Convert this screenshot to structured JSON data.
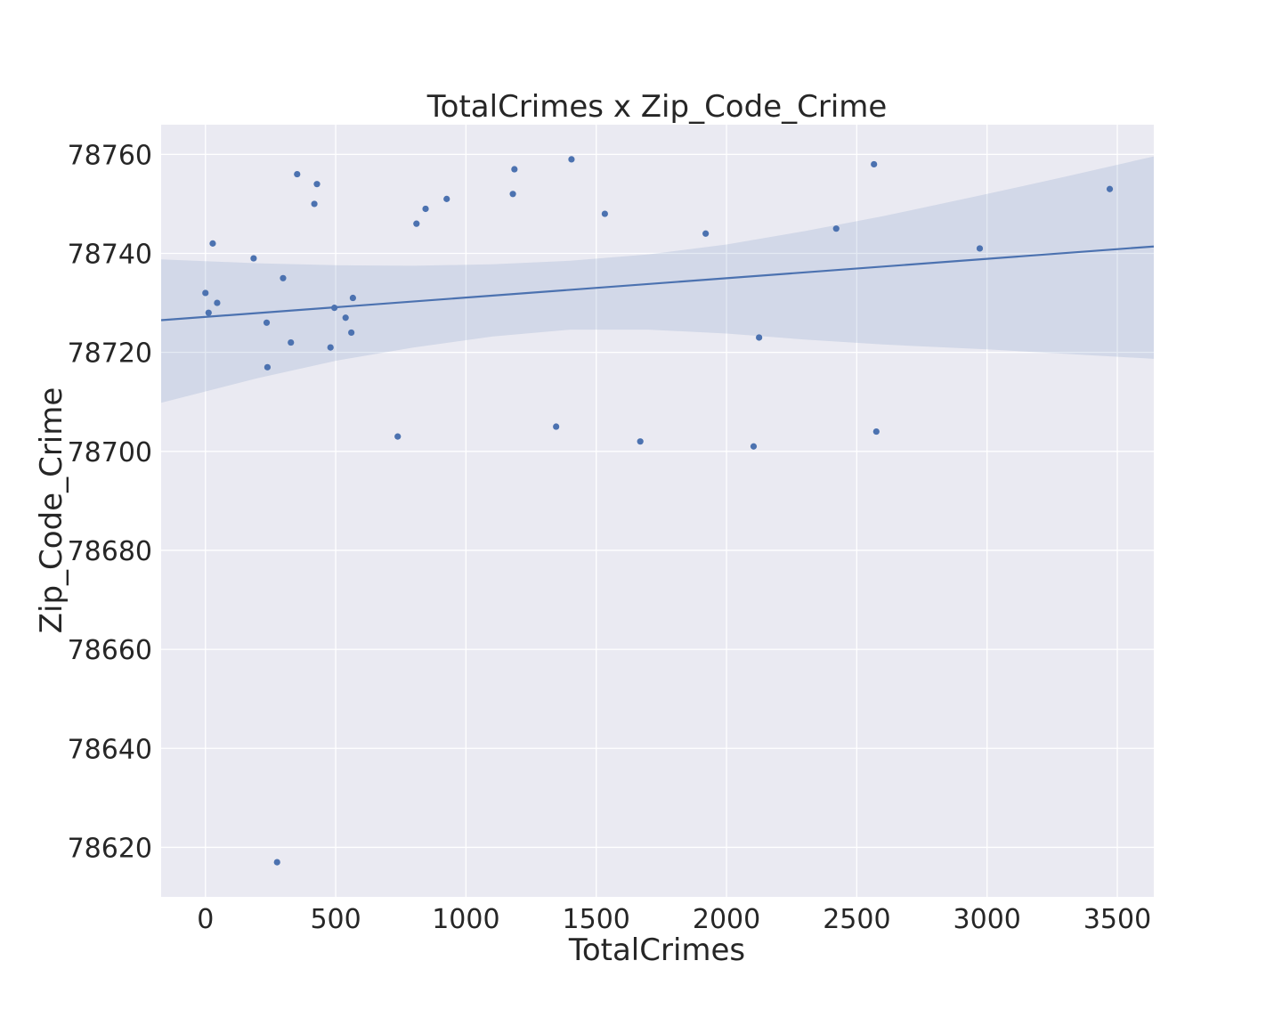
{
  "chart_data": {
    "type": "scatter",
    "title": "TotalCrimes x Zip_Code_Crime",
    "xlabel": "TotalCrimes",
    "ylabel": "Zip_Code_Crime",
    "xlim": [
      -170,
      3640
    ],
    "ylim": [
      78610,
      78766
    ],
    "xticks": [
      0,
      500,
      1000,
      1500,
      2000,
      2500,
      3000,
      3500
    ],
    "yticks": [
      78620,
      78640,
      78660,
      78680,
      78700,
      78720,
      78740,
      78760
    ],
    "grid": true,
    "style": "seaborn-darkgrid regplot",
    "colors": {
      "background": "#eaeaf2",
      "grid": "#ffffff",
      "point": "#4c72b0",
      "band": "#4c72b0"
    },
    "points": [
      {
        "x": 0,
        "y": 78732
      },
      {
        "x": 12,
        "y": 78728
      },
      {
        "x": 28,
        "y": 78742
      },
      {
        "x": 45,
        "y": 78730
      },
      {
        "x": 185,
        "y": 78739
      },
      {
        "x": 235,
        "y": 78726
      },
      {
        "x": 238,
        "y": 78717
      },
      {
        "x": 275,
        "y": 78617
      },
      {
        "x": 298,
        "y": 78735
      },
      {
        "x": 328,
        "y": 78722
      },
      {
        "x": 352,
        "y": 78756
      },
      {
        "x": 418,
        "y": 78750
      },
      {
        "x": 428,
        "y": 78754
      },
      {
        "x": 480,
        "y": 78721
      },
      {
        "x": 495,
        "y": 78729
      },
      {
        "x": 538,
        "y": 78727
      },
      {
        "x": 560,
        "y": 78724
      },
      {
        "x": 566,
        "y": 78731
      },
      {
        "x": 738,
        "y": 78703
      },
      {
        "x": 810,
        "y": 78746
      },
      {
        "x": 845,
        "y": 78749
      },
      {
        "x": 926,
        "y": 78751
      },
      {
        "x": 1180,
        "y": 78752
      },
      {
        "x": 1186,
        "y": 78757
      },
      {
        "x": 1346,
        "y": 78705
      },
      {
        "x": 1405,
        "y": 78759
      },
      {
        "x": 1533,
        "y": 78748
      },
      {
        "x": 1669,
        "y": 78702
      },
      {
        "x": 1920,
        "y": 78744
      },
      {
        "x": 2104,
        "y": 78701
      },
      {
        "x": 2125,
        "y": 78723
      },
      {
        "x": 2421,
        "y": 78745
      },
      {
        "x": 2566,
        "y": 78758
      },
      {
        "x": 2575,
        "y": 78704
      },
      {
        "x": 2972,
        "y": 78741
      },
      {
        "x": 3471,
        "y": 78753
      }
    ],
    "regression": {
      "line": [
        {
          "x": -170,
          "y": 78726.5
        },
        {
          "x": 3640,
          "y": 78741.4
        }
      ],
      "ci_upper": [
        {
          "x": -170,
          "y": 78738.8
        },
        {
          "x": 200,
          "y": 78738.0
        },
        {
          "x": 500,
          "y": 78737.6
        },
        {
          "x": 800,
          "y": 78737.5
        },
        {
          "x": 1100,
          "y": 78737.8
        },
        {
          "x": 1400,
          "y": 78738.5
        },
        {
          "x": 1700,
          "y": 78739.8
        },
        {
          "x": 2000,
          "y": 78741.8
        },
        {
          "x": 2300,
          "y": 78744.5
        },
        {
          "x": 2600,
          "y": 78747.5
        },
        {
          "x": 3000,
          "y": 78752.0
        },
        {
          "x": 3300,
          "y": 78755.5
        },
        {
          "x": 3640,
          "y": 78759.6
        }
      ],
      "ci_lower": [
        {
          "x": -170,
          "y": 78709.8
        },
        {
          "x": 200,
          "y": 78714.8
        },
        {
          "x": 500,
          "y": 78718.3
        },
        {
          "x": 800,
          "y": 78721.0
        },
        {
          "x": 1100,
          "y": 78723.2
        },
        {
          "x": 1400,
          "y": 78724.6
        },
        {
          "x": 1700,
          "y": 78724.6
        },
        {
          "x": 2000,
          "y": 78723.8
        },
        {
          "x": 2300,
          "y": 78722.6
        },
        {
          "x": 2600,
          "y": 78721.6
        },
        {
          "x": 3000,
          "y": 78720.6
        },
        {
          "x": 3300,
          "y": 78719.7
        },
        {
          "x": 3640,
          "y": 78718.7
        }
      ]
    }
  }
}
